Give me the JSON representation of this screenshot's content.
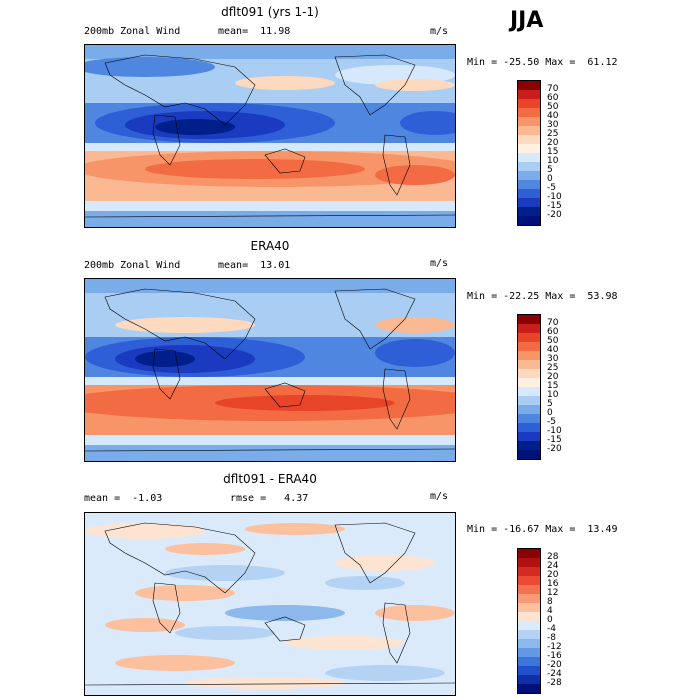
{
  "season": "JJA",
  "panels": [
    {
      "title": "dflt091 (yrs 1-1)",
      "left_label": "200mb Zonal Wind",
      "mid_label": "mean=  11.98",
      "units": "m/s",
      "minmax": "Min = -25.50 Max =  61.12",
      "levels": [
        "70",
        "60",
        "50",
        "40",
        "30",
        "25",
        "20",
        "15",
        "10",
        "5",
        "0",
        "-5",
        "-10",
        "-15",
        "-20"
      ],
      "colors": [
        "#8b0000",
        "#c81e1e",
        "#e8442a",
        "#f26b43",
        "#f79569",
        "#fbb993",
        "#fdd9bf",
        "#fff0e0",
        "#d6e8fb",
        "#a9cdf3",
        "#7aacea",
        "#4f86e0",
        "#2e5fd6",
        "#1a3bbf",
        "#001f8a",
        "#00107a"
      ]
    },
    {
      "title": "ERA40",
      "left_label": "200mb Zonal Wind",
      "mid_label": "mean=  13.01",
      "units": "m/s",
      "minmax": "Min = -22.25 Max =  53.98",
      "levels": [
        "70",
        "60",
        "50",
        "40",
        "30",
        "25",
        "20",
        "15",
        "10",
        "5",
        "0",
        "-5",
        "-10",
        "-15",
        "-20"
      ],
      "colors": [
        "#8b0000",
        "#c81e1e",
        "#e8442a",
        "#f26b43",
        "#f79569",
        "#fbb993",
        "#fdd9bf",
        "#fff0e0",
        "#d6e8fb",
        "#a9cdf3",
        "#7aacea",
        "#4f86e0",
        "#2e5fd6",
        "#1a3bbf",
        "#001f8a",
        "#00107a"
      ]
    },
    {
      "title": "dflt091 - ERA40",
      "left_label": "mean =  -1.03",
      "mid_label": "rmse =   4.37",
      "units": "m/s",
      "minmax": "Min = -16.67 Max =  13.49",
      "levels": [
        "28",
        "24",
        "20",
        "16",
        "12",
        "8",
        "4",
        "0",
        "-4",
        "-8",
        "-12",
        "-16",
        "-20",
        "-24",
        "-28"
      ],
      "colors": [
        "#8b0000",
        "#b01212",
        "#d32a22",
        "#ec4a35",
        "#f47250",
        "#f99a76",
        "#fcc09f",
        "#fde4d2",
        "#dbeafb",
        "#b4d3f4",
        "#8cb8ec",
        "#6399e4",
        "#3d74da",
        "#2250cc",
        "#0d2fa8",
        "#00107a"
      ]
    }
  ]
}
